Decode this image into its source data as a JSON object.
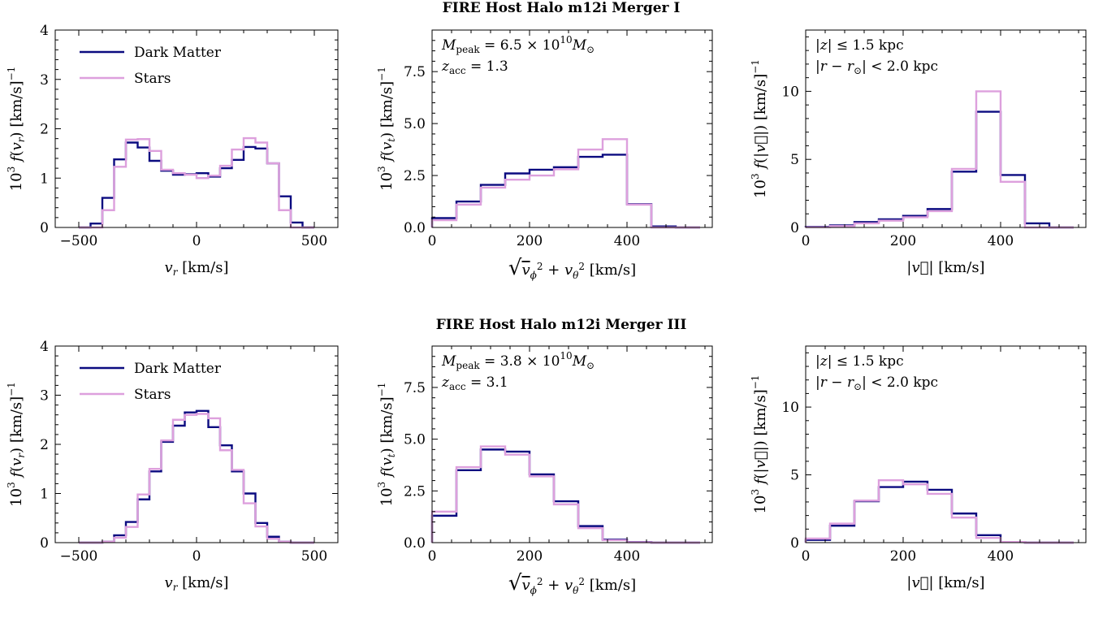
{
  "row_titles": [
    "FIRE Host Halo m12i Merger I",
    "FIRE Host Halo m12i Merger III"
  ],
  "colors": {
    "dark_matter": "#0b0b80",
    "stars": "#dda0dd"
  },
  "chart_data": [
    {
      "type": "histogram-step",
      "row_title": "FIRE Host Halo m12i Merger I",
      "xlabel": "v_r [km/s]",
      "ylabel": "10^3 f(v_r) [km/s]^-1",
      "xlim": [
        -600,
        600
      ],
      "ylim": [
        0,
        4
      ],
      "xticks": [
        {
          "v": -500,
          "label": "−500"
        },
        {
          "v": 0,
          "label": "0"
        },
        {
          "v": 500,
          "label": "500"
        }
      ],
      "yticks": [
        {
          "v": 0,
          "label": "0"
        },
        {
          "v": 1,
          "label": "1"
        },
        {
          "v": 2,
          "label": "2"
        },
        {
          "v": 3,
          "label": "3"
        },
        {
          "v": 4,
          "label": "4"
        }
      ],
      "legend": {
        "position": "upper-left",
        "entries": [
          "Dark Matter",
          "Stars"
        ]
      },
      "annotations": [],
      "bin_edges": [
        -500,
        -450,
        -400,
        -350,
        -300,
        -250,
        -200,
        -150,
        -100,
        -50,
        0,
        50,
        100,
        150,
        200,
        250,
        300,
        350,
        400,
        450,
        500
      ],
      "series": [
        {
          "name": "Dark Matter",
          "values": [
            0,
            0.08,
            0.6,
            1.38,
            1.72,
            1.62,
            1.35,
            1.15,
            1.07,
            1.08,
            1.1,
            1.03,
            1.2,
            1.37,
            1.63,
            1.6,
            1.3,
            0.63,
            0.1,
            0
          ]
        },
        {
          "name": "Stars",
          "values": [
            0,
            0,
            0.35,
            1.23,
            1.78,
            1.79,
            1.55,
            1.17,
            1.1,
            1.07,
            1,
            1.05,
            1.25,
            1.58,
            1.81,
            1.72,
            1.3,
            0.35,
            0,
            0
          ]
        }
      ]
    },
    {
      "type": "histogram-step",
      "row_title": "FIRE Host Halo m12i Merger I",
      "xlabel": "sqrt(v_phi^2 + v_theta^2) [km/s]",
      "ylabel": "10^3 f(v_t) [km/s]^-1",
      "xlim": [
        0,
        575
      ],
      "ylim": [
        0,
        9.5
      ],
      "xticks": [
        {
          "v": 0,
          "label": "0"
        },
        {
          "v": 200,
          "label": "200"
        },
        {
          "v": 400,
          "label": "400"
        }
      ],
      "yticks": [
        {
          "v": 0,
          "label": "0.0"
        },
        {
          "v": 2.5,
          "label": "2.5"
        },
        {
          "v": 5,
          "label": "5.0"
        },
        {
          "v": 7.5,
          "label": "7.5"
        }
      ],
      "legend": null,
      "annotations": [
        "M_peak = 6.5 × 10^10 M_⊙",
        "z_acc = 1.3"
      ],
      "bin_edges": [
        0,
        50,
        100,
        150,
        200,
        250,
        300,
        350,
        400,
        450,
        500,
        550
      ],
      "series": [
        {
          "name": "Dark Matter",
          "values": [
            0.45,
            1.25,
            2.05,
            2.6,
            2.78,
            2.9,
            3.4,
            3.5,
            1.12,
            0.05,
            0
          ]
        },
        {
          "name": "Stars",
          "values": [
            0.35,
            1.1,
            1.92,
            2.3,
            2.5,
            2.8,
            3.75,
            4.25,
            1.1,
            0,
            0
          ]
        }
      ]
    },
    {
      "type": "histogram-step",
      "row_title": "FIRE Host Halo m12i Merger I",
      "xlabel": "|v| [km/s]",
      "ylabel": "10^3 f(|v|) [km/s]^-1",
      "xlim": [
        0,
        575
      ],
      "ylim": [
        0,
        14.5
      ],
      "xticks": [
        {
          "v": 0,
          "label": "0"
        },
        {
          "v": 200,
          "label": "200"
        },
        {
          "v": 400,
          "label": "400"
        }
      ],
      "yticks": [
        {
          "v": 0,
          "label": "0"
        },
        {
          "v": 5,
          "label": "5"
        },
        {
          "v": 10,
          "label": "10"
        }
      ],
      "legend": null,
      "annotations": [
        "|z| ≤ 1.5 kpc",
        "|r − r_⊙| < 2.0 kpc"
      ],
      "bin_edges": [
        0,
        50,
        100,
        150,
        200,
        250,
        300,
        350,
        400,
        450,
        500,
        550
      ],
      "series": [
        {
          "name": "Dark Matter",
          "values": [
            0.05,
            0.15,
            0.4,
            0.6,
            0.85,
            1.35,
            4.1,
            8.5,
            3.85,
            0.3,
            0
          ]
        },
        {
          "name": "Stars",
          "values": [
            0.02,
            0.1,
            0.3,
            0.5,
            0.75,
            1.2,
            4.3,
            10,
            3.35,
            0,
            0
          ]
        }
      ]
    },
    {
      "type": "histogram-step",
      "row_title": "FIRE Host Halo m12i Merger III",
      "xlabel": "v_r [km/s]",
      "ylabel": "10^3 f(v_r) [km/s]^-1",
      "xlim": [
        -600,
        600
      ],
      "ylim": [
        0,
        4
      ],
      "xticks": [
        {
          "v": -500,
          "label": "−500"
        },
        {
          "v": 0,
          "label": "0"
        },
        {
          "v": 500,
          "label": "500"
        }
      ],
      "yticks": [
        {
          "v": 0,
          "label": "0"
        },
        {
          "v": 1,
          "label": "1"
        },
        {
          "v": 2,
          "label": "2"
        },
        {
          "v": 3,
          "label": "3"
        },
        {
          "v": 4,
          "label": "4"
        }
      ],
      "legend": {
        "position": "upper-left",
        "entries": [
          "Dark Matter",
          "Stars"
        ]
      },
      "annotations": [],
      "bin_edges": [
        -500,
        -450,
        -400,
        -350,
        -300,
        -250,
        -200,
        -150,
        -100,
        -50,
        0,
        50,
        100,
        150,
        200,
        250,
        300,
        350,
        400,
        450,
        500
      ],
      "series": [
        {
          "name": "Dark Matter",
          "values": [
            0,
            0,
            0.02,
            0.15,
            0.42,
            0.88,
            1.45,
            2.05,
            2.38,
            2.65,
            2.68,
            2.35,
            1.98,
            1.45,
            1,
            0.4,
            0.12,
            0.02,
            0,
            0
          ]
        },
        {
          "name": "Stars",
          "values": [
            0,
            0,
            0.02,
            0.1,
            0.32,
            0.98,
            1.5,
            2.08,
            2.5,
            2.6,
            2.62,
            2.53,
            1.88,
            1.48,
            0.8,
            0.33,
            0.08,
            0.02,
            0,
            0
          ]
        }
      ]
    },
    {
      "type": "histogram-step",
      "row_title": "FIRE Host Halo m12i Merger III",
      "xlabel": "sqrt(v_phi^2 + v_theta^2) [km/s]",
      "ylabel": "10^3 f(v_t) [km/s]^-1",
      "xlim": [
        0,
        575
      ],
      "ylim": [
        0,
        9.5
      ],
      "xticks": [
        {
          "v": 0,
          "label": "0"
        },
        {
          "v": 200,
          "label": "200"
        },
        {
          "v": 400,
          "label": "400"
        }
      ],
      "yticks": [
        {
          "v": 0,
          "label": "0.0"
        },
        {
          "v": 2.5,
          "label": "2.5"
        },
        {
          "v": 5,
          "label": "5.0"
        },
        {
          "v": 7.5,
          "label": "7.5"
        }
      ],
      "legend": null,
      "annotations": [
        "M_peak = 3.8 × 10^10 M_⊙",
        "z_acc = 3.1"
      ],
      "bin_edges": [
        0,
        50,
        100,
        150,
        200,
        250,
        300,
        350,
        400,
        450,
        500,
        550
      ],
      "series": [
        {
          "name": "Dark Matter",
          "values": [
            1.3,
            3.5,
            4.5,
            4.4,
            3.3,
            2,
            0.8,
            0.15,
            0.03,
            0,
            0
          ]
        },
        {
          "name": "Stars",
          "values": [
            1.5,
            3.65,
            4.65,
            4.25,
            3.2,
            1.85,
            0.7,
            0.12,
            0.02,
            0,
            0
          ]
        }
      ]
    },
    {
      "type": "histogram-step",
      "row_title": "FIRE Host Halo m12i Merger III",
      "xlabel": "|v| [km/s]",
      "ylabel": "10^3 f(|v|) [km/s]^-1",
      "xlim": [
        0,
        575
      ],
      "ylim": [
        0,
        14.5
      ],
      "xticks": [
        {
          "v": 0,
          "label": "0"
        },
        {
          "v": 200,
          "label": "200"
        },
        {
          "v": 400,
          "label": "400"
        }
      ],
      "yticks": [
        {
          "v": 0,
          "label": "0"
        },
        {
          "v": 5,
          "label": "5"
        },
        {
          "v": 10,
          "label": "10"
        }
      ],
      "legend": null,
      "annotations": [
        "|z| ≤ 1.5 kpc",
        "|r − r_⊙| < 2.0 kpc"
      ],
      "bin_edges": [
        0,
        50,
        100,
        150,
        200,
        250,
        300,
        350,
        400,
        450,
        500,
        550
      ],
      "series": [
        {
          "name": "Dark Matter",
          "values": [
            0.2,
            1.25,
            3.05,
            4.1,
            4.5,
            3.9,
            2.15,
            0.55,
            0.05,
            0,
            0
          ]
        },
        {
          "name": "Stars",
          "values": [
            0.3,
            1.4,
            3.1,
            4.6,
            4.3,
            3.6,
            1.85,
            0.35,
            0.05,
            0,
            0
          ]
        }
      ]
    }
  ]
}
